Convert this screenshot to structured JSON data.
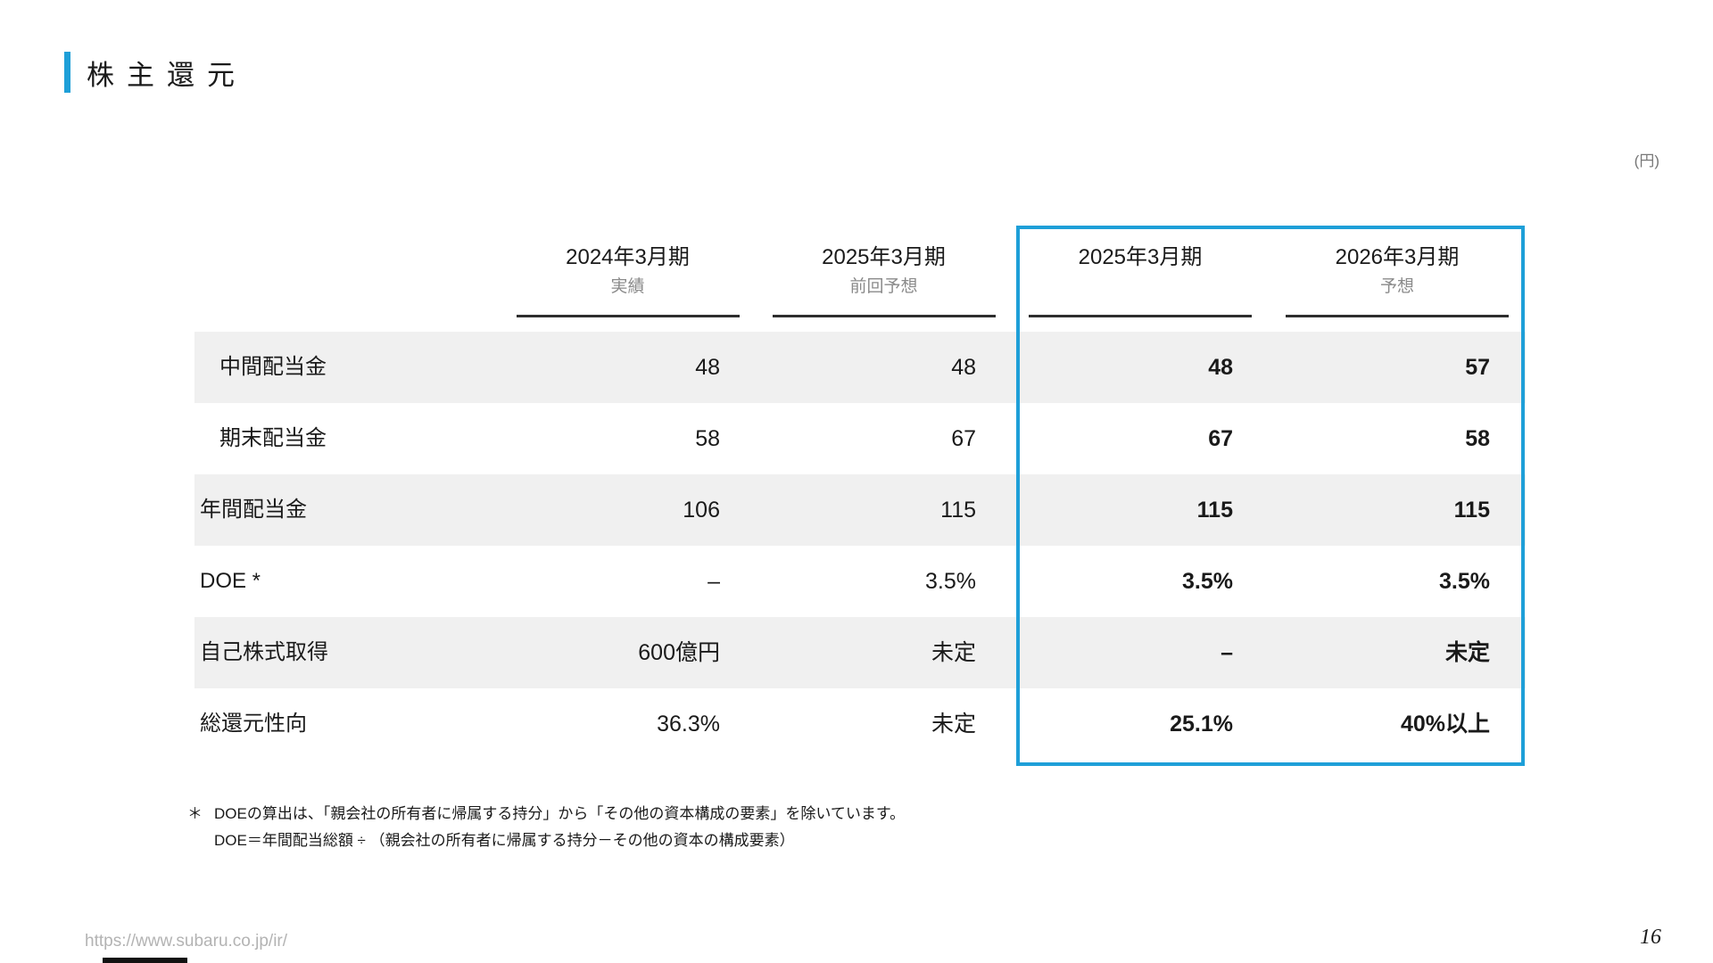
{
  "slide": {
    "title": "株主還元",
    "unit_label": "(円)",
    "source_url": "https://www.subaru.co.jp/ir/",
    "page_number": "16"
  },
  "table": {
    "columns": [
      {
        "period": "2024年3月期",
        "sub": "実績",
        "highlighted": false
      },
      {
        "period": "2025年3月期",
        "sub": "前回予想",
        "highlighted": false
      },
      {
        "period": "2025年3月期",
        "sub": "",
        "highlighted": true
      },
      {
        "period": "2026年3月期",
        "sub": "予想",
        "highlighted": true
      }
    ],
    "rows": [
      {
        "label": "中間配当金",
        "indent": true,
        "values": [
          "48",
          "48",
          "48",
          "57"
        ]
      },
      {
        "label": "期末配当金",
        "indent": true,
        "values": [
          "58",
          "67",
          "67",
          "58"
        ]
      },
      {
        "label": "年間配当金",
        "indent": false,
        "values": [
          "106",
          "115",
          "115",
          "115"
        ]
      },
      {
        "label": "DOE *",
        "indent": false,
        "values": [
          "–",
          "3.5%",
          "3.5%",
          "3.5%"
        ]
      },
      {
        "label": "自己株式取得",
        "indent": false,
        "values": [
          "600億円",
          "未定",
          "–",
          "未定"
        ]
      },
      {
        "label": "総還元性向",
        "indent": false,
        "values": [
          "36.3%",
          "未定",
          "25.1%",
          "40%以上"
        ]
      }
    ]
  },
  "footnote": {
    "marker": "＊",
    "line1": "DOEの算出は、「親会社の所有者に帰属する持分」から「その他の資本構成の要素」を除いています。",
    "line2": "DOE＝年間配当総額 ÷ （親会社の所有者に帰属する持分－その他の資本の構成要素）"
  },
  "colors": {
    "accent_blue": "#1e9fd8",
    "row_shade": "#f0f0f0",
    "sub_label_gray": "#8a8a8a",
    "underline_dark": "#2e2e2e",
    "text_black": "#1a1a1a",
    "muted_gray": "#b3b3b3"
  }
}
